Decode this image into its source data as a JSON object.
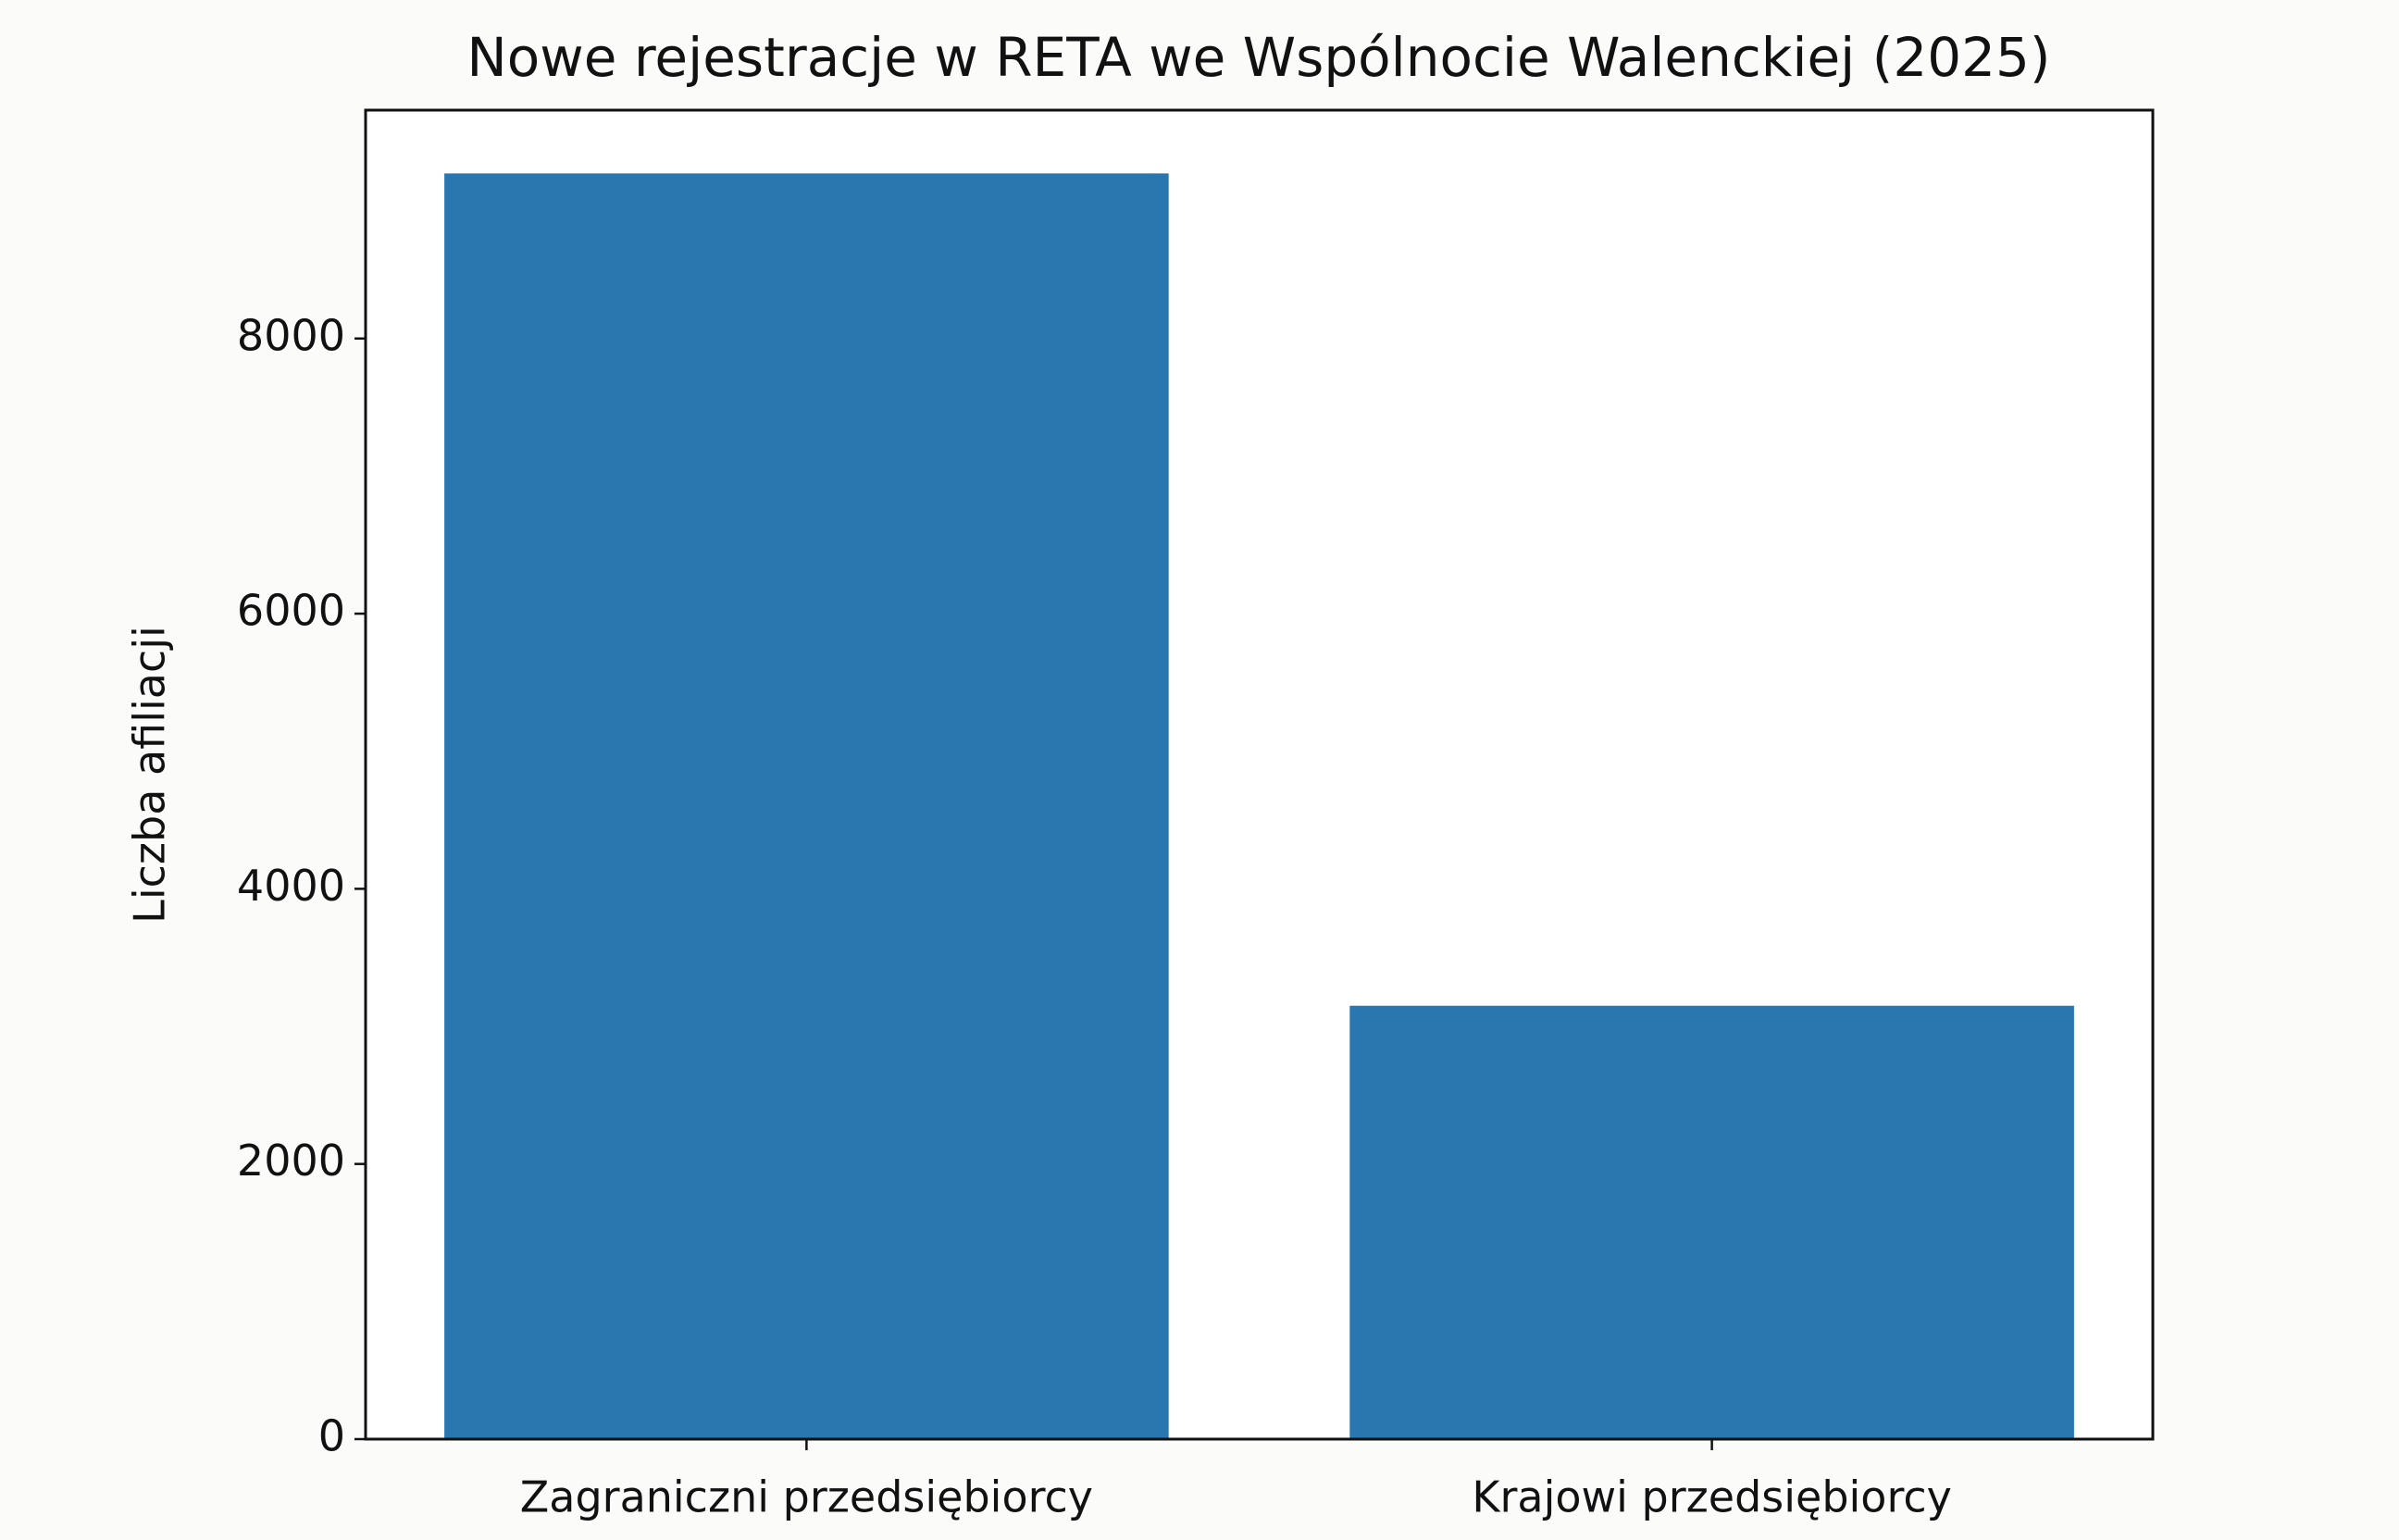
{
  "chart_data": {
    "type": "bar",
    "title": "Nowe rejestracje w RETA we Wspólnocie Walenckiej (2025)",
    "y_label": "Liczba afiliacji",
    "categories": [
      "Zagraniczni przedsiębiorcy",
      "Krajowi przedsiębiorcy"
    ],
    "values": [
      9200,
      3150
    ],
    "color": "#2a77b0",
    "ylim": [
      0,
      9660
    ],
    "yticks": [
      0,
      2000,
      4000,
      6000,
      8000
    ]
  }
}
